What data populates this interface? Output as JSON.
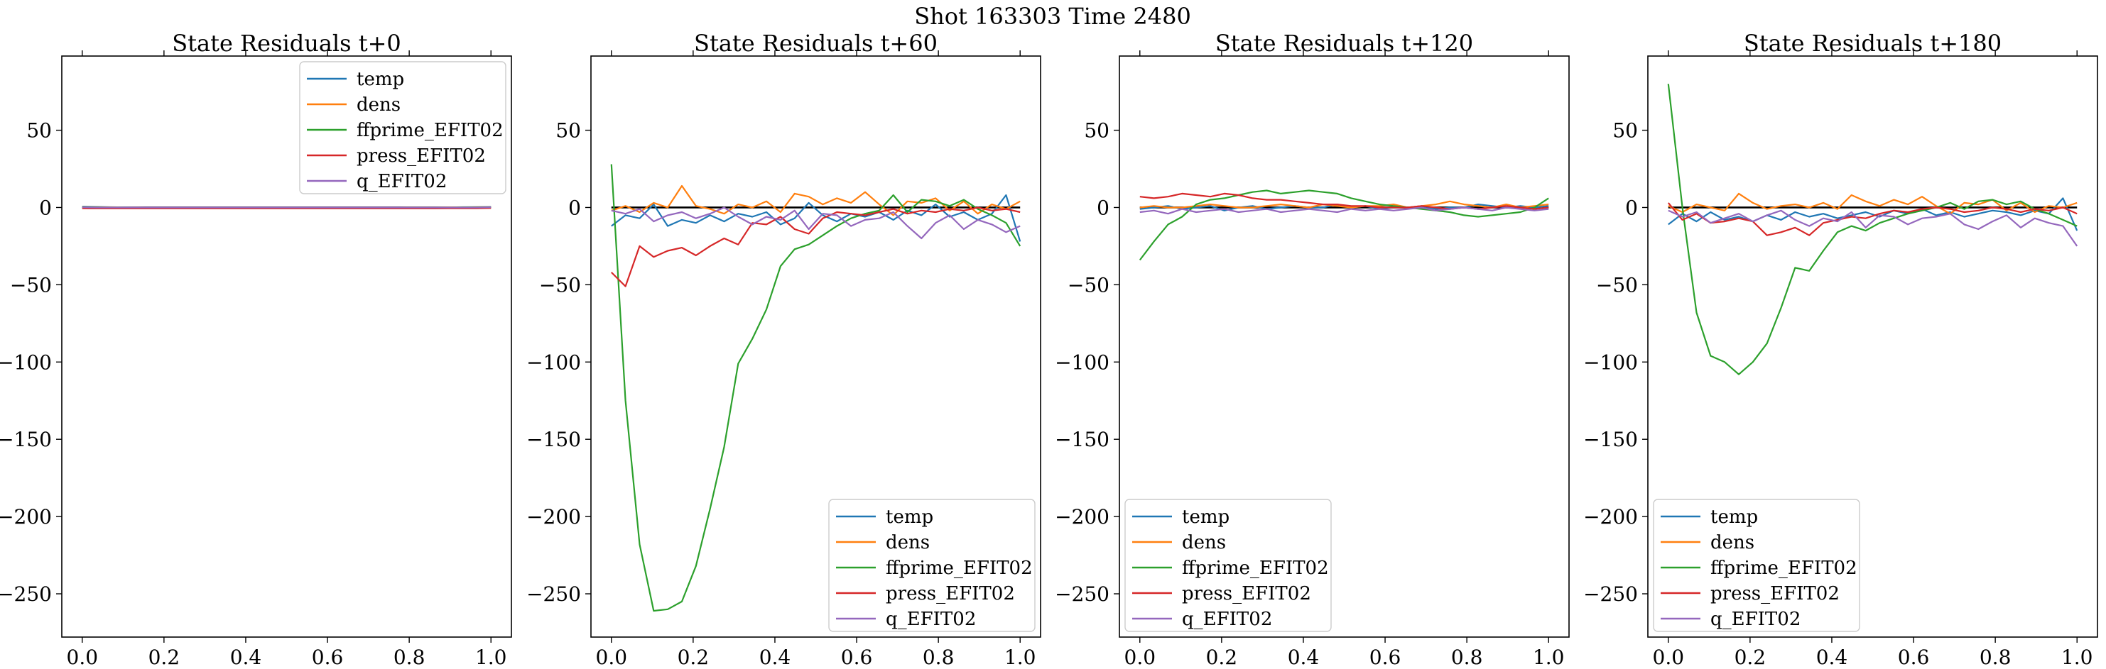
{
  "suptitle": "Shot 163303   Time 2480",
  "colors": {
    "temp": "#1f77b4",
    "dens": "#ff7f0e",
    "ffprime_EFIT02": "#2ca02c",
    "press_EFIT02": "#d62728",
    "q_EFIT02": "#9467bd",
    "zero": "#000000"
  },
  "chart_data": [
    {
      "type": "line",
      "title": "State Residuals t+0",
      "xlim": [
        -0.05,
        1.05
      ],
      "ylim": [
        -278,
        98
      ],
      "xticks": [
        "0.0",
        "0.2",
        "0.4",
        "0.6",
        "0.8",
        "1.0"
      ],
      "yticks": [
        "50",
        "0",
        "−50",
        "−100",
        "−150",
        "−200",
        "−250"
      ],
      "legend_loc": "upper right",
      "x": [
        0.0,
        0.0345,
        0.069,
        0.1034,
        0.1379,
        0.1724,
        0.2069,
        0.2414,
        0.2759,
        0.3103,
        0.3448,
        0.3793,
        0.4138,
        0.4483,
        0.4828,
        0.5172,
        0.5517,
        0.5862,
        0.6207,
        0.6552,
        0.6897,
        0.7241,
        0.7586,
        0.7931,
        0.8276,
        0.8621,
        0.8966,
        0.931,
        0.9655,
        1.0
      ],
      "series": [
        {
          "name": "temp",
          "values": [
            0.6,
            0.4,
            0.2,
            0.1,
            0.0,
            -0.1,
            -0.1,
            -0.2,
            -0.2,
            -0.3,
            -0.3,
            -0.3,
            -0.4,
            -0.4,
            -0.4,
            -0.4,
            -0.4,
            -0.4,
            -0.3,
            -0.3,
            -0.3,
            -0.2,
            -0.2,
            -0.1,
            -0.1,
            0.0,
            0.1,
            0.2,
            0.3,
            0.4
          ]
        },
        {
          "name": "dens",
          "values": [
            0.3,
            0.2,
            0.1,
            0.0,
            0.0,
            -0.1,
            -0.1,
            -0.1,
            -0.2,
            -0.2,
            -0.2,
            -0.2,
            -0.2,
            -0.3,
            -0.3,
            -0.3,
            -0.2,
            -0.2,
            -0.2,
            -0.2,
            -0.1,
            -0.1,
            -0.1,
            0.0,
            0.0,
            0.0,
            0.1,
            0.1,
            0.2,
            0.2
          ]
        },
        {
          "name": "ffprime_EFIT02",
          "values": [
            0.2,
            0.1,
            0.0,
            0.0,
            -0.1,
            -0.1,
            -0.1,
            -0.1,
            -0.2,
            -0.2,
            -0.2,
            -0.2,
            -0.2,
            -0.2,
            -0.2,
            -0.2,
            -0.2,
            -0.2,
            -0.2,
            -0.1,
            -0.1,
            -0.1,
            -0.1,
            0.0,
            0.0,
            0.0,
            0.0,
            0.1,
            0.1,
            0.1
          ]
        },
        {
          "name": "press_EFIT02",
          "values": [
            -0.5,
            -0.6,
            -0.6,
            -0.6,
            -0.6,
            -0.6,
            -0.6,
            -0.6,
            -0.6,
            -0.6,
            -0.6,
            -0.6,
            -0.6,
            -0.6,
            -0.6,
            -0.6,
            -0.6,
            -0.6,
            -0.6,
            -0.6,
            -0.6,
            -0.6,
            -0.6,
            -0.6,
            -0.6,
            -0.6,
            -0.5,
            -0.5,
            -0.5,
            -0.4
          ]
        },
        {
          "name": "q_EFIT02",
          "values": [
            0.1,
            0.0,
            0.0,
            0.0,
            0.0,
            0.0,
            0.0,
            0.0,
            0.0,
            0.0,
            0.0,
            0.0,
            0.0,
            0.0,
            0.0,
            0.0,
            0.0,
            0.0,
            0.0,
            0.0,
            0.0,
            0.0,
            0.0,
            0.0,
            0.0,
            0.0,
            0.0,
            0.0,
            0.0,
            0.1
          ]
        }
      ]
    },
    {
      "type": "line",
      "title": "State Residuals t+60",
      "xlim": [
        -0.05,
        1.05
      ],
      "ylim": [
        -278,
        98
      ],
      "xticks": [
        "0.0",
        "0.2",
        "0.4",
        "0.6",
        "0.8",
        "1.0"
      ],
      "yticks": [
        "50",
        "0",
        "−50",
        "−100",
        "−150",
        "−200",
        "−250"
      ],
      "legend_loc": "lower right",
      "x": [
        0.0,
        0.0345,
        0.069,
        0.1034,
        0.1379,
        0.1724,
        0.2069,
        0.2414,
        0.2759,
        0.3103,
        0.3448,
        0.3793,
        0.4138,
        0.4483,
        0.4828,
        0.5172,
        0.5517,
        0.5862,
        0.6207,
        0.6552,
        0.6897,
        0.7241,
        0.7586,
        0.7931,
        0.8276,
        0.8621,
        0.8966,
        0.931,
        0.9655,
        1.0
      ],
      "series": [
        {
          "name": "temp",
          "values": [
            -12,
            -5,
            -7,
            2,
            -12,
            -8,
            -10,
            -5,
            -9,
            -4,
            -6,
            -3,
            -11,
            -7,
            3,
            -5,
            -9,
            -4,
            -6,
            -3,
            -8,
            -2,
            -5,
            2,
            -6,
            -3,
            -8,
            -4,
            8,
            -22
          ]
        },
        {
          "name": "dens",
          "values": [
            -2,
            1,
            -3,
            3,
            0,
            14,
            1,
            -1,
            -4,
            2,
            0,
            4,
            -3,
            9,
            7,
            2,
            6,
            3,
            10,
            2,
            -5,
            4,
            3,
            6,
            -2,
            4,
            -4,
            2,
            -1,
            4
          ]
        },
        {
          "name": "ffprime_EFIT02",
          "values": [
            28,
            -125,
            -218,
            -261,
            -260,
            -255,
            -232,
            -195,
            -155,
            -101,
            -85,
            -66,
            -38,
            -27,
            -24,
            -18,
            -12,
            -7,
            -4,
            -2,
            8,
            -3,
            5,
            4,
            1,
            5,
            -1,
            -5,
            -10,
            -25
          ]
        },
        {
          "name": "press_EFIT02",
          "values": [
            -42,
            -51,
            -25,
            -32,
            -28,
            -26,
            -31,
            -25,
            -20,
            -24,
            -10,
            -11,
            -6,
            -14,
            -17,
            -7,
            -3,
            -4,
            -5,
            -3,
            -1,
            -4,
            -2,
            -3,
            -1,
            -2,
            0,
            -2,
            -1,
            -3
          ]
        },
        {
          "name": "q_EFIT02",
          "values": [
            -2,
            -4,
            -1,
            -9,
            -5,
            -3,
            -7,
            -4,
            0,
            -6,
            -11,
            -6,
            -8,
            -2,
            -14,
            -4,
            -5,
            -12,
            -8,
            -7,
            -3,
            -12,
            -20,
            -10,
            -5,
            -14,
            -8,
            -11,
            -16,
            -12
          ]
        }
      ]
    },
    {
      "type": "line",
      "title": "State Residuals t+120",
      "xlim": [
        -0.05,
        1.05
      ],
      "ylim": [
        -278,
        98
      ],
      "xticks": [
        "0.0",
        "0.2",
        "0.4",
        "0.6",
        "0.8",
        "1.0"
      ],
      "yticks": [
        "50",
        "0",
        "−50",
        "−100",
        "−150",
        "−200",
        "−250"
      ],
      "legend_loc": "lower left",
      "x": [
        0.0,
        0.0345,
        0.069,
        0.1034,
        0.1379,
        0.1724,
        0.2069,
        0.2414,
        0.2759,
        0.3103,
        0.3448,
        0.3793,
        0.4138,
        0.4483,
        0.4828,
        0.5172,
        0.5517,
        0.5862,
        0.6207,
        0.6552,
        0.6897,
        0.7241,
        0.7586,
        0.7931,
        0.8276,
        0.8621,
        0.8966,
        0.931,
        0.9655,
        1.0
      ],
      "series": [
        {
          "name": "temp",
          "values": [
            -1,
            0,
            1,
            -1,
            0,
            1,
            -2,
            0,
            1,
            -1,
            0,
            1,
            0,
            0,
            2,
            0,
            1,
            -1,
            0,
            0,
            1,
            -1,
            0,
            0,
            2,
            1,
            0,
            1,
            0,
            1
          ]
        },
        {
          "name": "dens",
          "values": [
            0,
            1,
            0,
            0,
            1,
            2,
            1,
            0,
            0,
            1,
            2,
            1,
            0,
            2,
            1,
            0,
            1,
            1,
            2,
            0,
            1,
            2,
            4,
            2,
            1,
            0,
            2,
            0,
            1,
            2
          ]
        },
        {
          "name": "ffprime_EFIT02",
          "values": [
            -34,
            -22,
            -11,
            -6,
            2,
            5,
            6,
            8,
            10,
            11,
            9,
            10,
            11,
            10,
            9,
            6,
            4,
            2,
            1,
            0,
            -1,
            -2,
            -3,
            -5,
            -6,
            -5,
            -4,
            -3,
            0,
            6
          ]
        },
        {
          "name": "press_EFIT02",
          "values": [
            7,
            6,
            7,
            9,
            8,
            7,
            9,
            8,
            6,
            5,
            5,
            4,
            3,
            2,
            2,
            1,
            1,
            0,
            0,
            0,
            1,
            0,
            -1,
            0,
            -1,
            0,
            1,
            0,
            -1,
            0
          ]
        },
        {
          "name": "q_EFIT02",
          "values": [
            -3,
            -2,
            -4,
            -1,
            -3,
            -2,
            -1,
            -3,
            -2,
            -1,
            -3,
            -2,
            -1,
            -2,
            -3,
            -1,
            -2,
            -1,
            -2,
            -1,
            0,
            -2,
            -1,
            0,
            -1,
            -2,
            0,
            -1,
            -2,
            -1
          ]
        }
      ]
    },
    {
      "type": "line",
      "title": "State Residuals t+180",
      "xlim": [
        -0.05,
        1.05
      ],
      "ylim": [
        -278,
        98
      ],
      "xticks": [
        "0.0",
        "0.2",
        "0.4",
        "0.6",
        "0.8",
        "1.0"
      ],
      "yticks": [
        "50",
        "0",
        "−50",
        "−100",
        "−150",
        "−200",
        "−250"
      ],
      "legend_loc": "lower left",
      "x": [
        0.0,
        0.0345,
        0.069,
        0.1034,
        0.1379,
        0.1724,
        0.2069,
        0.2414,
        0.2759,
        0.3103,
        0.3448,
        0.3793,
        0.4138,
        0.4483,
        0.4828,
        0.5172,
        0.5517,
        0.5862,
        0.6207,
        0.6552,
        0.6897,
        0.7241,
        0.7586,
        0.7931,
        0.8276,
        0.8621,
        0.8966,
        0.931,
        0.9655,
        1.0
      ],
      "series": [
        {
          "name": "temp",
          "values": [
            -11,
            -4,
            -9,
            -3,
            -8,
            -6,
            -9,
            -5,
            -8,
            -3,
            -6,
            -4,
            -7,
            -5,
            -3,
            -6,
            -2,
            -4,
            -1,
            -5,
            -3,
            -6,
            -4,
            -2,
            -3,
            -5,
            -2,
            -4,
            6,
            -15
          ]
        },
        {
          "name": "dens",
          "values": [
            1,
            -3,
            2,
            0,
            -2,
            9,
            3,
            -1,
            1,
            2,
            0,
            3,
            -1,
            8,
            4,
            1,
            5,
            2,
            7,
            1,
            -4,
            3,
            2,
            5,
            -2,
            3,
            -3,
            1,
            0,
            3
          ]
        },
        {
          "name": "ffprime_EFIT02",
          "values": [
            80,
            0,
            -68,
            -96,
            -100,
            -108,
            -100,
            -88,
            -65,
            -39,
            -41,
            -28,
            -16,
            -12,
            -15,
            -10,
            -7,
            -4,
            -2,
            0,
            3,
            -1,
            4,
            5,
            2,
            4,
            -1,
            -4,
            -8,
            -12
          ]
        },
        {
          "name": "press_EFIT02",
          "values": [
            3,
            -8,
            -4,
            -10,
            -9,
            -7,
            -9,
            -18,
            -16,
            -13,
            -18,
            -10,
            -8,
            -6,
            -7,
            -4,
            -2,
            -3,
            -1,
            0,
            -1,
            -3,
            -2,
            0,
            -1,
            -3,
            -1,
            -2,
            0,
            -4
          ]
        },
        {
          "name": "q_EFIT02",
          "values": [
            -2,
            -6,
            -3,
            -10,
            -7,
            -4,
            -9,
            -5,
            -2,
            -8,
            -12,
            -7,
            -9,
            -3,
            -13,
            -5,
            -6,
            -11,
            -7,
            -6,
            -4,
            -11,
            -14,
            -9,
            -5,
            -13,
            -7,
            -10,
            -12,
            -25
          ]
        }
      ]
    }
  ]
}
